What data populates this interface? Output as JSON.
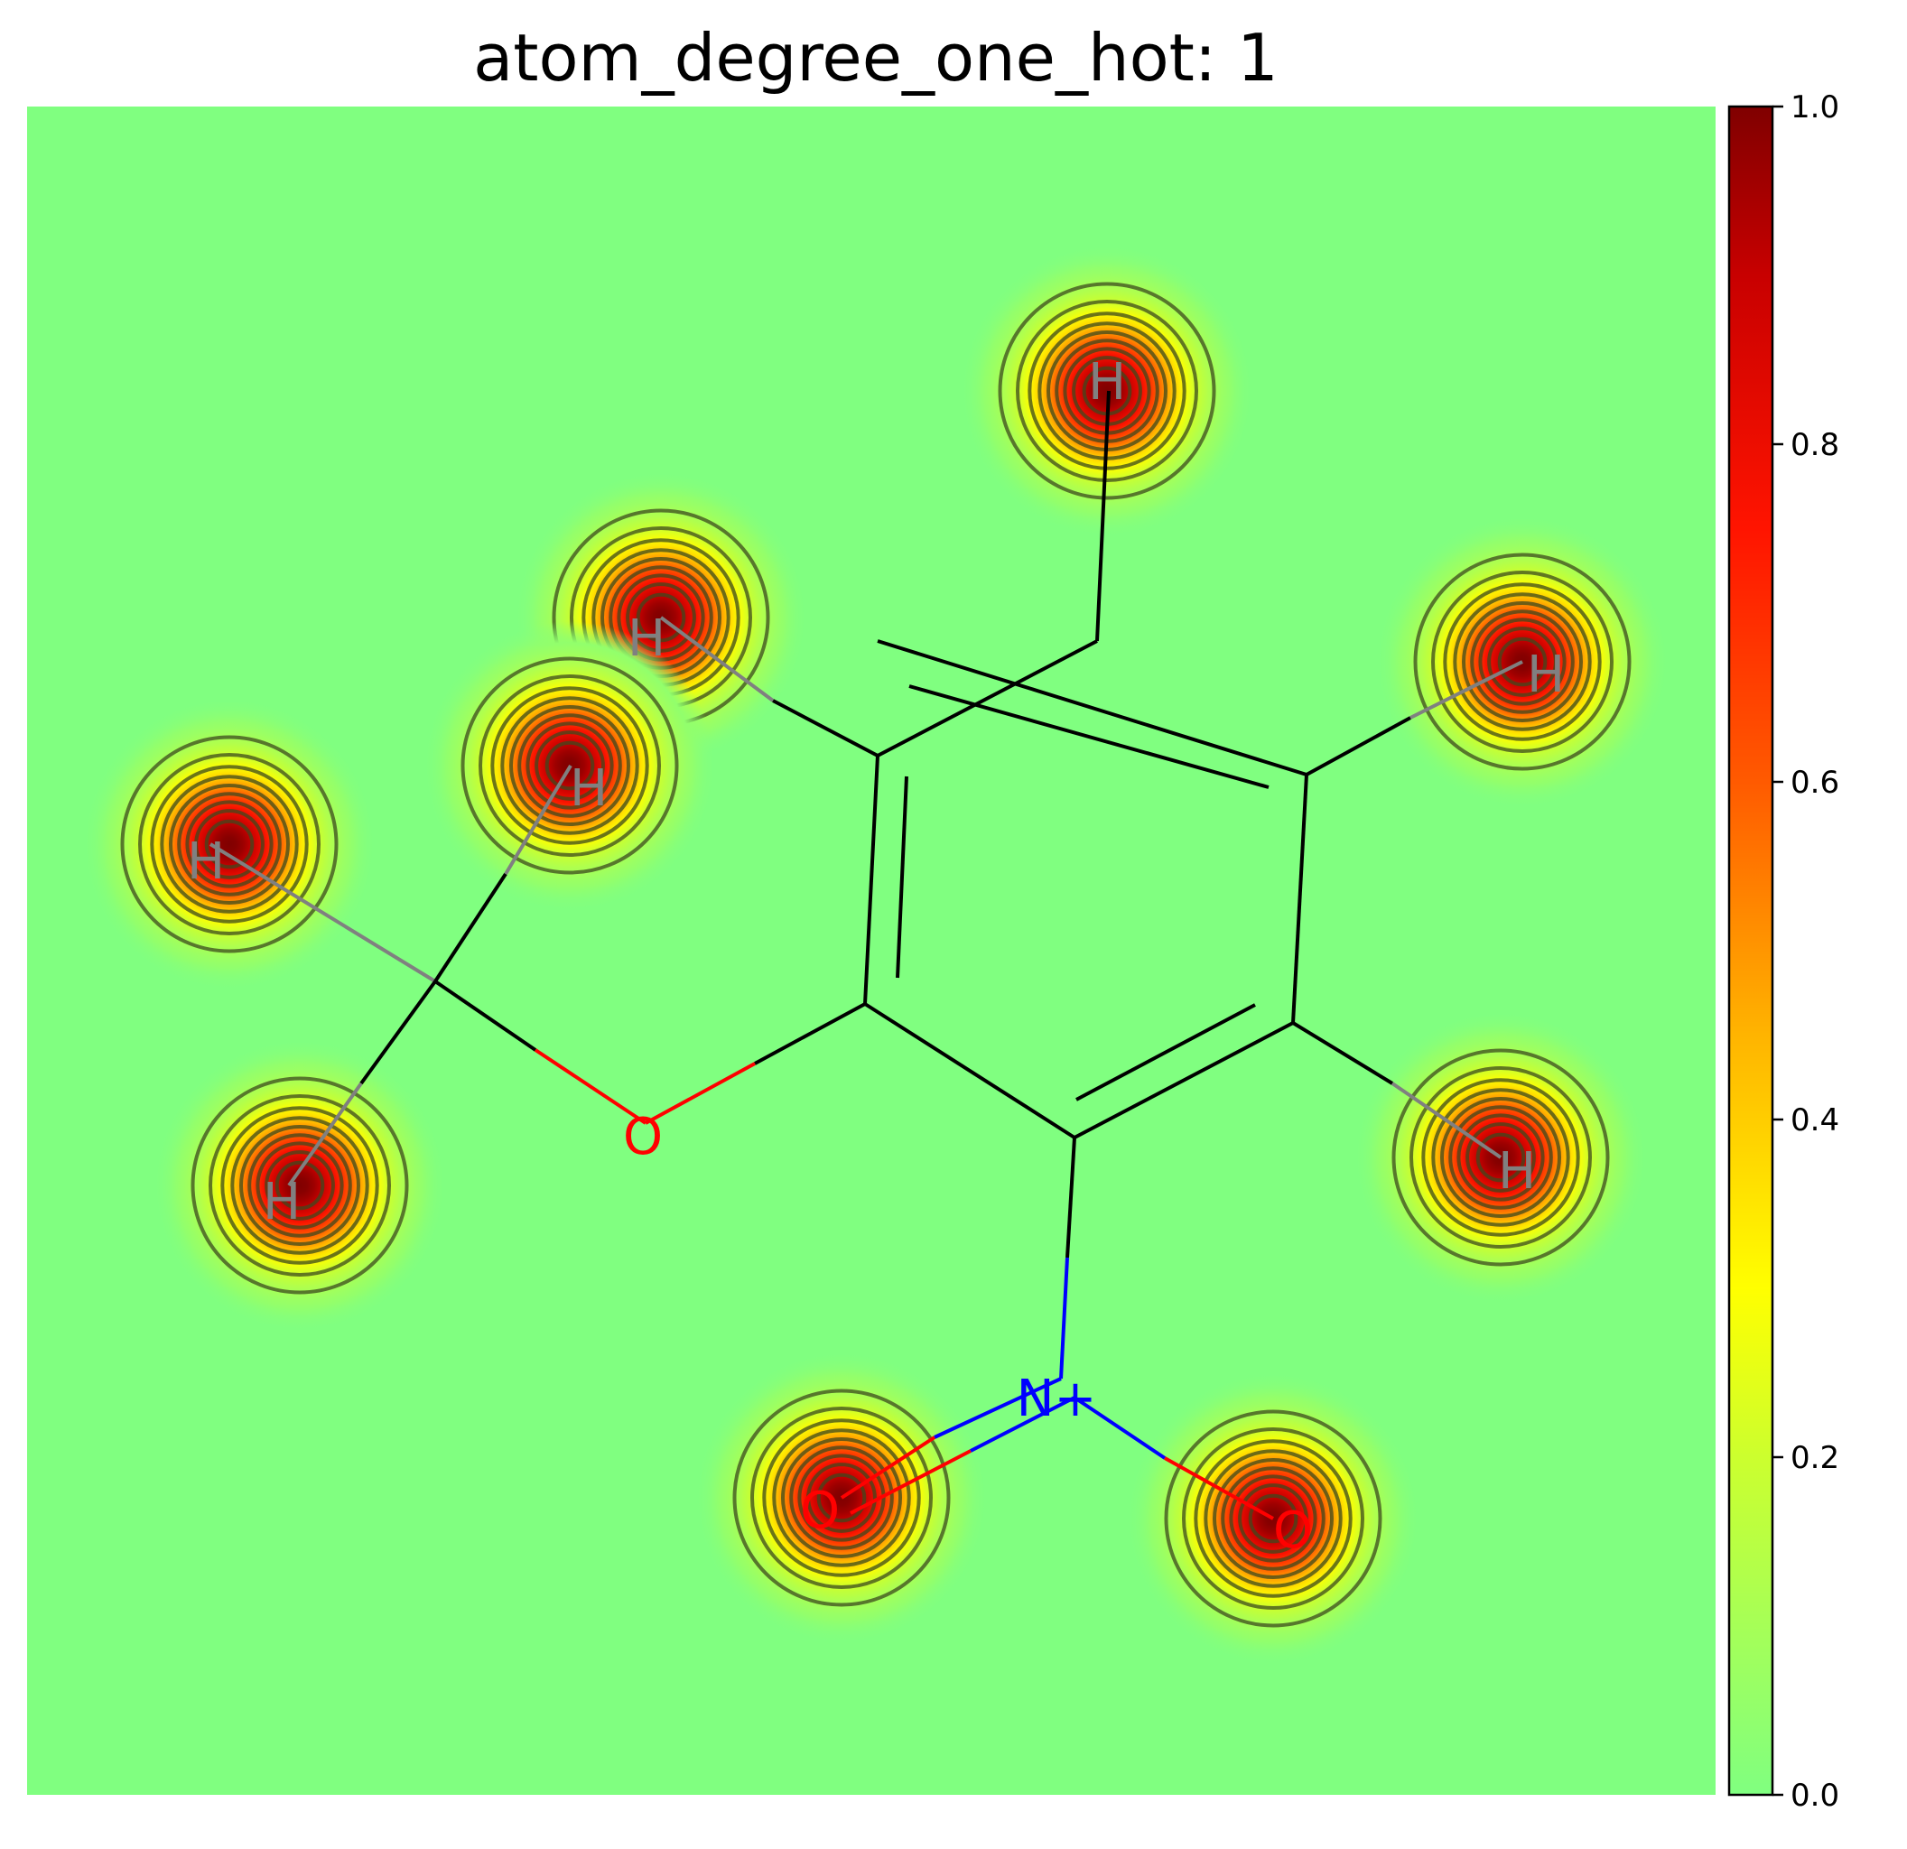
{
  "chart_data": {
    "type": "heatmap",
    "title": "atom_degree_one_hot: 1",
    "colormap": "jet-like (green background to dark red)",
    "colorbar": {
      "min": 0.0,
      "max": 1.0,
      "ticks": [
        "0.0",
        "0.2",
        "0.4",
        "0.6",
        "0.8",
        "1.0"
      ],
      "tick_values": [
        0.0,
        0.2,
        0.4,
        0.6,
        0.8,
        1.0
      ],
      "stops": [
        {
          "v": 0.0,
          "c": "#80ff80"
        },
        {
          "v": 0.2,
          "c": "#ccff2e"
        },
        {
          "v": 0.3,
          "c": "#ffff00"
        },
        {
          "v": 0.45,
          "c": "#ffb400"
        },
        {
          "v": 0.6,
          "c": "#ff5a00"
        },
        {
          "v": 0.75,
          "c": "#ff1400"
        },
        {
          "v": 0.9,
          "c": "#c80000"
        },
        {
          "v": 1.0,
          "c": "#800000"
        }
      ]
    },
    "hotspots": [
      {
        "label": "H",
        "value": 1.0
      },
      {
        "label": "H",
        "value": 1.0
      },
      {
        "label": "H",
        "value": 1.0
      },
      {
        "label": "H",
        "value": 1.0
      },
      {
        "label": "H",
        "value": 1.0
      },
      {
        "label": "H",
        "value": 1.0
      },
      {
        "label": "O",
        "value": 1.0
      },
      {
        "label": "O",
        "value": 1.0
      }
    ],
    "contour_levels": [
      0.1,
      0.2,
      0.3,
      0.4,
      0.5,
      0.6,
      0.7,
      0.8,
      0.9
    ],
    "molecule": {
      "atoms": [
        "H",
        "H",
        "H",
        "H",
        "H",
        "H",
        "O",
        "N+",
        "O",
        "O"
      ],
      "atom_colors": {
        "H": "#808080",
        "O": "#ff0000",
        "N+": "#0000ff",
        "C": "#000000"
      }
    },
    "grid": false,
    "colorbar_position": "right"
  }
}
